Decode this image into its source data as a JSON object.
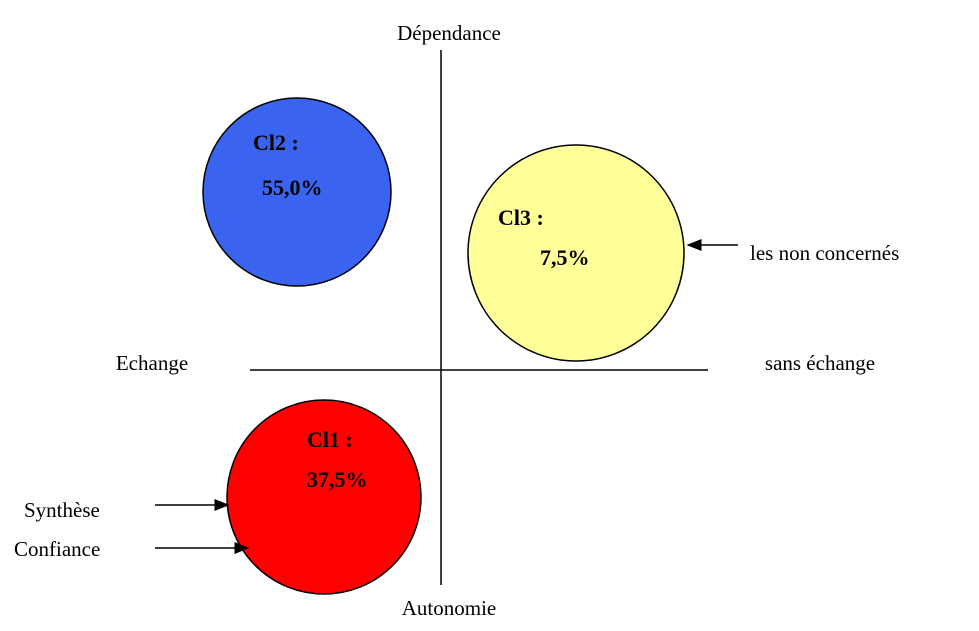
{
  "axes": {
    "top": "Dépendance",
    "bottom": "Autonomie",
    "left": "Echange",
    "right": "sans échange"
  },
  "clusters": [
    {
      "name": "Cl2 :",
      "share": "55,0%"
    },
    {
      "name": "Cl3 :",
      "share": "7,5%"
    },
    {
      "name": "Cl1 :",
      "share": "37,5%"
    }
  ],
  "annotations": [
    "les non concernés",
    "Synthèse",
    "Confiance"
  ]
}
